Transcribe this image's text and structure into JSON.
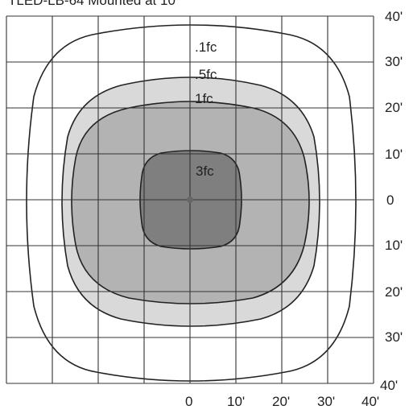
{
  "title": "TLED-LB-64 Mounted at 10'",
  "colors": {
    "grid": "#333333",
    "zone_05fc": "#d9d9d9",
    "zone_1fc": "#b3b3b3",
    "zone_3fc": "#7f7f7f",
    "center_dot": "#666666"
  },
  "contours": [
    {
      "label": ".1fc"
    },
    {
      "label": ".5fc"
    },
    {
      "label": "1fc"
    },
    {
      "label": "3fc"
    }
  ],
  "axis": {
    "right_ticks": [
      "40'",
      "30'",
      "20'",
      "10'",
      "0",
      "10'",
      "20'",
      "30'",
      "40'"
    ],
    "bottom_ticks": [
      "0",
      "10'",
      "20'",
      "30'",
      "40'"
    ]
  }
}
